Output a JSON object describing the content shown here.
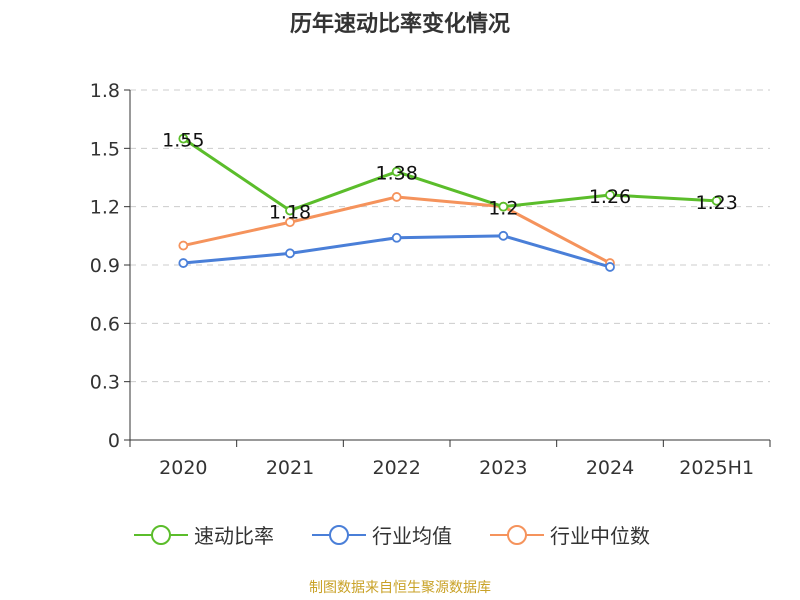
{
  "title": "历年速动比率变化情况",
  "source": "制图数据来自恒生聚源数据库",
  "chart_data": {
    "type": "line",
    "title": "历年速动比率变化情况",
    "categories": [
      "2020",
      "2021",
      "2022",
      "2023",
      "2024",
      "2025H1"
    ],
    "ylim": [
      0,
      1.8
    ],
    "yticks": [
      0,
      0.3,
      0.6,
      0.9,
      1.2,
      1.5,
      1.8
    ],
    "ytick_labels": [
      "0",
      "0.3",
      "0.6",
      "0.9",
      "1.2",
      "1.5",
      "1.8"
    ],
    "grid": true,
    "legend_position": "bottom",
    "series": [
      {
        "name": "速动比率",
        "color": "#5bbd2b",
        "values": [
          1.55,
          1.18,
          1.38,
          1.2,
          1.26,
          1.23
        ],
        "labels": [
          "1.55",
          "1.18",
          "1.38",
          "1.2",
          "1.26",
          "1.23"
        ]
      },
      {
        "name": "行业均值",
        "color": "#4a7fd8",
        "values": [
          0.91,
          0.96,
          1.04,
          1.05,
          0.89,
          null
        ]
      },
      {
        "name": "行业中位数",
        "color": "#f5935c",
        "values": [
          1.0,
          1.12,
          1.25,
          1.2,
          0.91,
          null
        ]
      }
    ]
  }
}
